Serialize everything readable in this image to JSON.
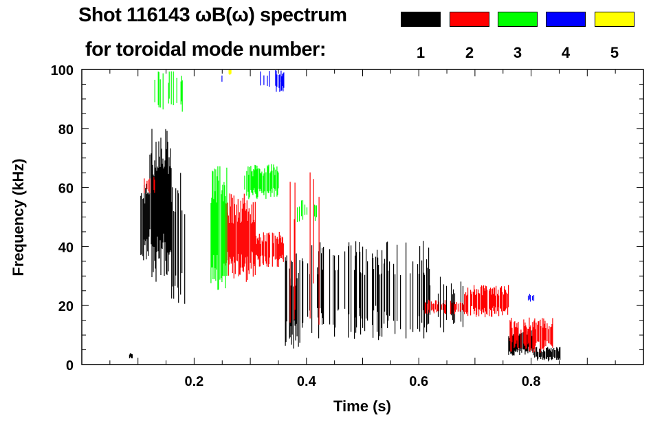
{
  "chart_data": {
    "type": "heatmap",
    "title": "Shot 116143 ωB(ω) spectrum",
    "subtitle": "for toroidal mode number:",
    "xlabel": "Time (s)",
    "ylabel": "Frequency (kHz)",
    "xlim": [
      0,
      1.0
    ],
    "ylim": [
      0,
      100
    ],
    "xticks": [
      "0.2",
      "0.4",
      "0.6",
      "0.8"
    ],
    "xtick_values": [
      0.2,
      0.4,
      0.6,
      0.8
    ],
    "yticks": [
      "0",
      "20",
      "40",
      "60",
      "80",
      "100"
    ],
    "ytick_values": [
      0,
      20,
      40,
      60,
      80,
      100
    ],
    "legend": [
      {
        "mode": "1",
        "color": "#000000"
      },
      {
        "mode": "2",
        "color": "#ff0000"
      },
      {
        "mode": "3",
        "color": "#00ff00"
      },
      {
        "mode": "4",
        "color": "#0000ff"
      },
      {
        "mode": "5",
        "color": "#ffff00"
      }
    ],
    "regions": [
      {
        "mode": 1,
        "t": [
          0.105,
          0.12
        ],
        "f": [
          35,
          62
        ],
        "density": 0.9
      },
      {
        "mode": 1,
        "t": [
          0.12,
          0.16
        ],
        "f": [
          28,
          80
        ],
        "density": 0.95
      },
      {
        "mode": 1,
        "t": [
          0.16,
          0.185
        ],
        "f": [
          20,
          65
        ],
        "density": 0.6
      },
      {
        "mode": 1,
        "t": [
          0.36,
          0.39
        ],
        "f": [
          4,
          38
        ],
        "density": 0.7
      },
      {
        "mode": 1,
        "t": [
          0.39,
          0.62
        ],
        "f": [
          8,
          42
        ],
        "density": 0.35
      },
      {
        "mode": 1,
        "t": [
          0.62,
          0.68
        ],
        "f": [
          10,
          30
        ],
        "density": 0.3
      },
      {
        "mode": 1,
        "t": [
          0.76,
          0.805
        ],
        "f": [
          3,
          12
        ],
        "density": 0.95
      },
      {
        "mode": 1,
        "t": [
          0.805,
          0.855
        ],
        "f": [
          1,
          6
        ],
        "density": 0.8
      },
      {
        "mode": 1,
        "t": [
          0.085,
          0.09
        ],
        "f": [
          2,
          4
        ],
        "density": 1
      },
      {
        "mode": 2,
        "t": [
          0.255,
          0.31
        ],
        "f": [
          28,
          58
        ],
        "density": 0.95
      },
      {
        "mode": 2,
        "t": [
          0.31,
          0.36
        ],
        "f": [
          33,
          45
        ],
        "density": 0.8
      },
      {
        "mode": 2,
        "t": [
          0.36,
          0.43
        ],
        "f": [
          10,
          70
        ],
        "density": 0.12
      },
      {
        "mode": 2,
        "t": [
          0.61,
          0.68
        ],
        "f": [
          17,
          22
        ],
        "density": 0.5
      },
      {
        "mode": 2,
        "t": [
          0.68,
          0.76
        ],
        "f": [
          16,
          27
        ],
        "density": 0.85
      },
      {
        "mode": 2,
        "t": [
          0.76,
          0.84
        ],
        "f": [
          4,
          16
        ],
        "density": 0.6
      },
      {
        "mode": 2,
        "t": [
          0.11,
          0.13
        ],
        "f": [
          58,
          64
        ],
        "density": 0.3
      },
      {
        "mode": 3,
        "t": [
          0.23,
          0.26
        ],
        "f": [
          25,
          68
        ],
        "density": 0.85
      },
      {
        "mode": 3,
        "t": [
          0.29,
          0.35
        ],
        "f": [
          56,
          68
        ],
        "density": 0.8
      },
      {
        "mode": 3,
        "t": [
          0.13,
          0.18
        ],
        "f": [
          85,
          100
        ],
        "density": 0.25
      },
      {
        "mode": 3,
        "t": [
          0.38,
          0.42
        ],
        "f": [
          48,
          56
        ],
        "density": 0.4
      },
      {
        "mode": 4,
        "t": [
          0.23,
          0.36
        ],
        "f": [
          94,
          100
        ],
        "density": 0.1
      },
      {
        "mode": 4,
        "t": [
          0.345,
          0.36
        ],
        "f": [
          92,
          100
        ],
        "density": 0.7
      },
      {
        "mode": 4,
        "t": [
          0.795,
          0.805
        ],
        "f": [
          21,
          24
        ],
        "density": 0.6
      },
      {
        "mode": 5,
        "t": [
          0.262,
          0.266
        ],
        "f": [
          98,
          100
        ],
        "density": 1
      }
    ]
  }
}
